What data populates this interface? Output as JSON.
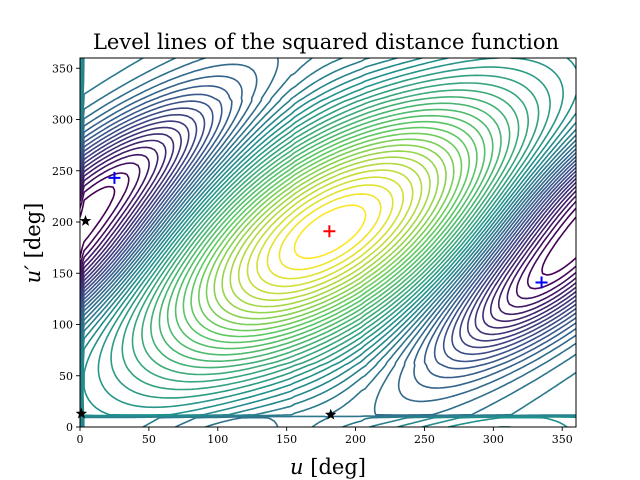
{
  "chart_data": {
    "type": "contour",
    "title": "Level lines of the squared distance function",
    "xlabel": {
      "var": "u",
      "unit": " [deg]"
    },
    "ylabel": {
      "var": "u′",
      "unit": " [deg]"
    },
    "xlim": [
      0,
      360
    ],
    "ylim": [
      0,
      360
    ],
    "xticks": [
      0,
      50,
      100,
      150,
      200,
      250,
      300,
      350
    ],
    "yticks": [
      0,
      50,
      100,
      150,
      200,
      250,
      300,
      350
    ],
    "grid": false,
    "colormap": [
      "#440154",
      "#3b528b",
      "#21918c",
      "#5ec962",
      "#fde725"
    ],
    "levels": 45,
    "markers": [
      {
        "kind": "maximum",
        "symbol": "plus",
        "color": "#ff0000",
        "x": 181,
        "y": 191
      },
      {
        "kind": "minimum",
        "symbol": "plus",
        "color": "#0000ff",
        "x": 25,
        "y": 243
      },
      {
        "kind": "minimum",
        "symbol": "plus",
        "color": "#0000ff",
        "x": 335,
        "y": 141
      },
      {
        "kind": "saddle",
        "symbol": "star",
        "color": "#000000",
        "x": 4,
        "y": 201
      },
      {
        "kind": "saddle",
        "symbol": "star",
        "color": "#000000",
        "x": 182,
        "y": 12
      },
      {
        "kind": "saddle",
        "symbol": "star",
        "color": "#000000",
        "x": 1,
        "y": 13
      }
    ]
  }
}
